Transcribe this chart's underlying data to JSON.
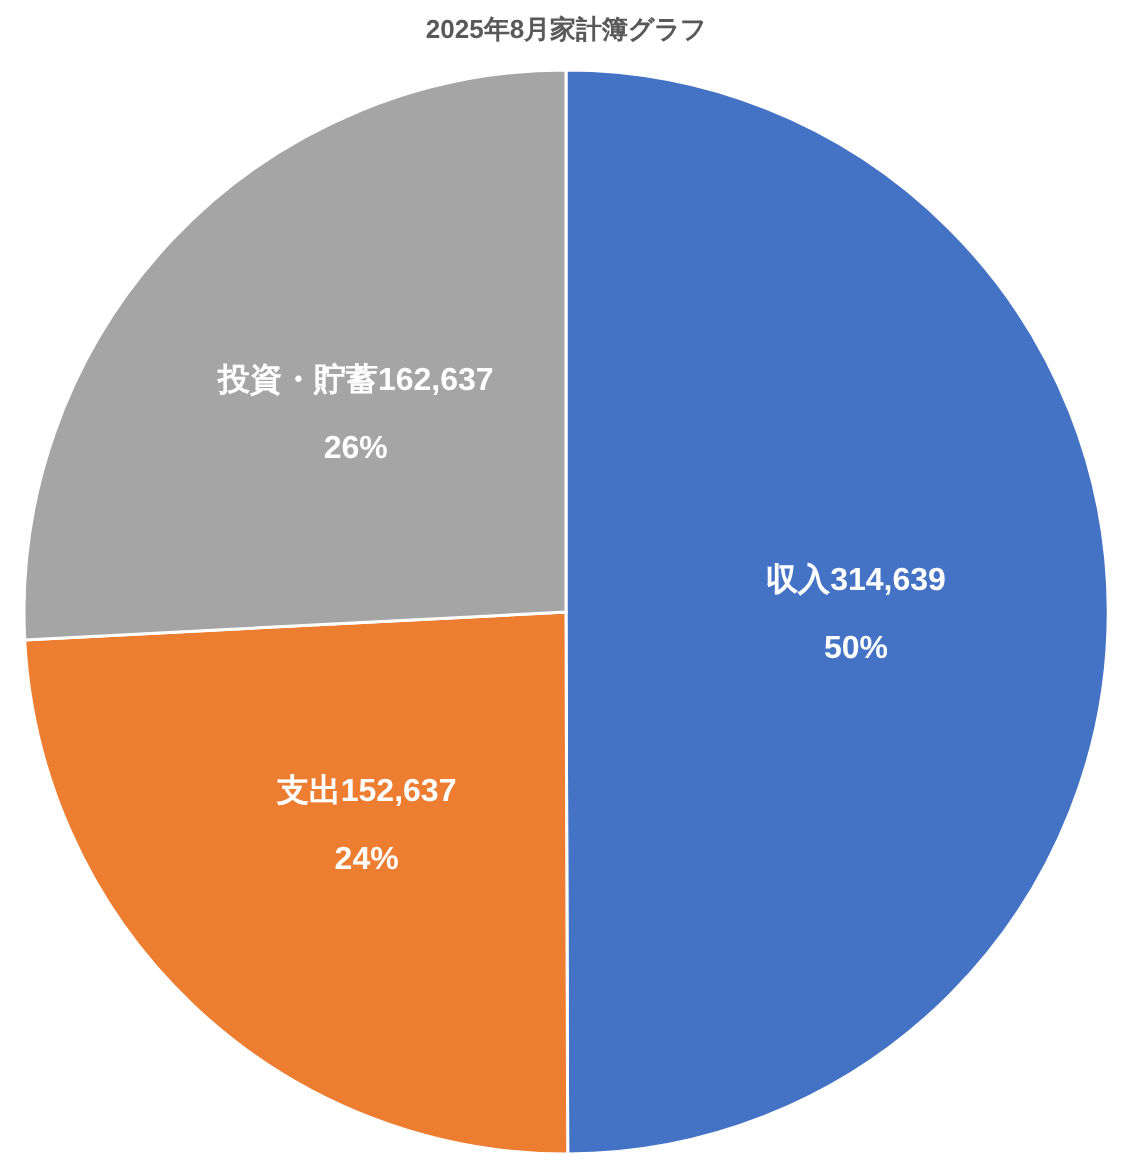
{
  "chart_data": {
    "type": "pie",
    "title": "2025年8月家計簿グラフ",
    "categories": [
      "収入",
      "支出",
      "投資・貯蓄"
    ],
    "values": [
      314639,
      152637,
      162637
    ],
    "value_labels": [
      "314,639",
      "152,637",
      "162,637"
    ],
    "colors": [
      "#4472c4",
      "#ed7d31",
      "#a5a5a5"
    ],
    "annotations": [
      {
        "text": "50%",
        "x": "収入"
      },
      {
        "text": "24%",
        "x": "支出"
      },
      {
        "text": "26%",
        "x": "投資・貯蓄"
      }
    ]
  }
}
